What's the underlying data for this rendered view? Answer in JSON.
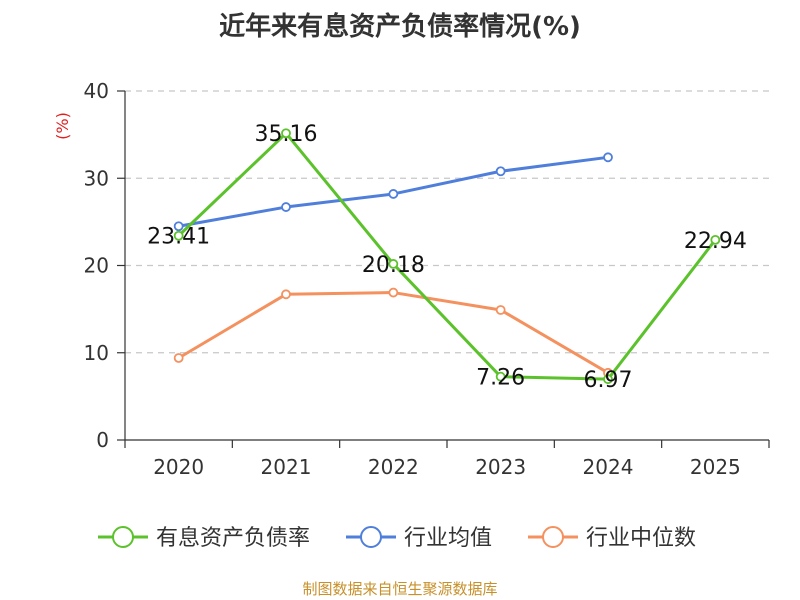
{
  "chart_data": {
    "type": "line",
    "title": "近年来有息资产负债率情况(%)",
    "ylabel": "(%)",
    "categories": [
      "2020",
      "2021",
      "2022",
      "2023",
      "2024",
      "2025"
    ],
    "ylim": [
      0,
      40
    ],
    "yticks": [
      0,
      10,
      20,
      30,
      40
    ],
    "grid": true,
    "legend_position": "bottom",
    "series": [
      {
        "name": "有息资产负债率",
        "color": "#5cc22c",
        "values": [
          23.41,
          35.16,
          20.18,
          7.26,
          6.97,
          22.94
        ],
        "labels": [
          "23.41",
          "35.16",
          "20.18",
          "7.26",
          "6.97",
          "22.94"
        ]
      },
      {
        "name": "行业均值",
        "color": "#4f7fdb",
        "values": [
          24.5,
          26.7,
          28.2,
          30.8,
          32.4,
          null
        ]
      },
      {
        "name": "行业中位数",
        "color": "#f4915e",
        "values": [
          9.4,
          16.7,
          16.9,
          14.9,
          7.7,
          null
        ]
      }
    ],
    "source": "制图数据来自恒生聚源数据库",
    "ylabel_color": "#e02020",
    "source_color": "#c8902a"
  }
}
